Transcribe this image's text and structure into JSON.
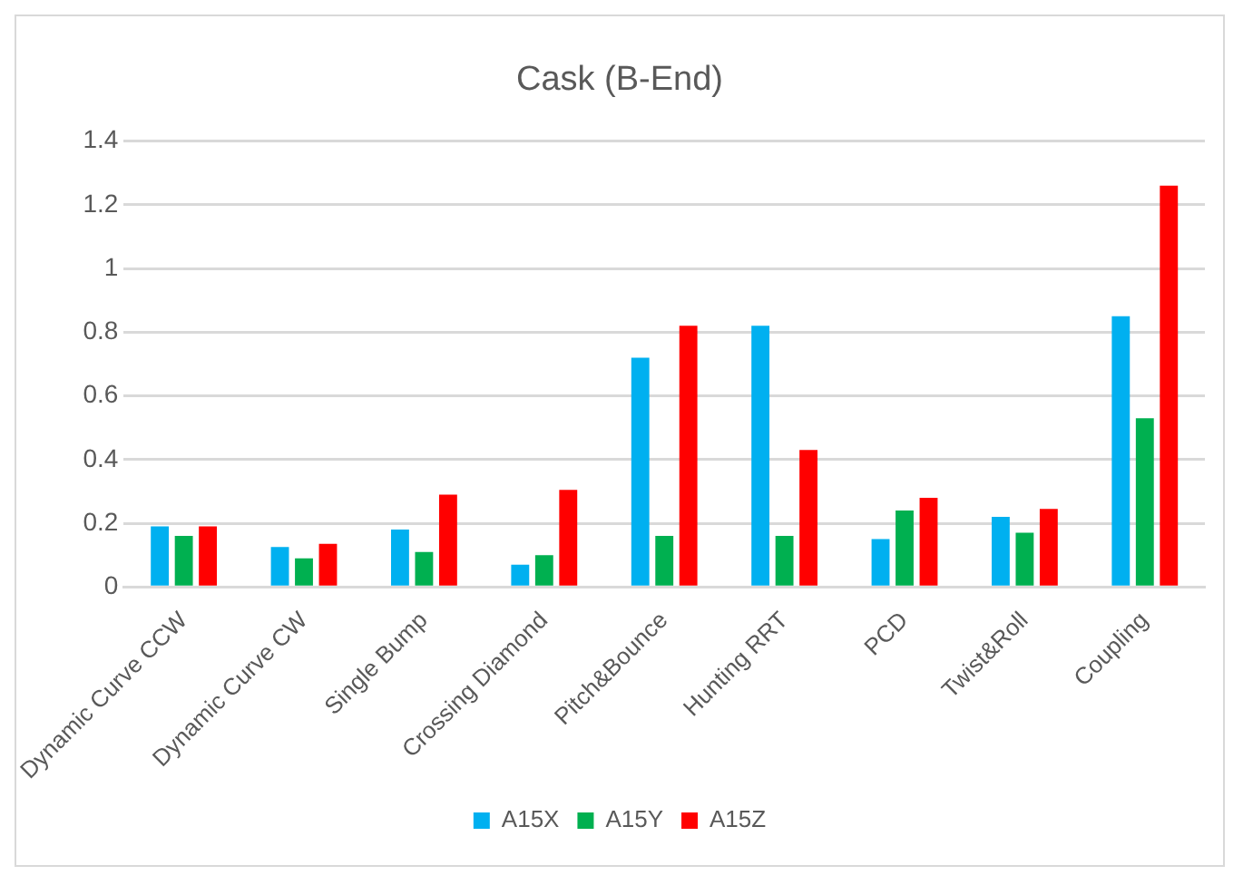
{
  "chart_data": {
    "type": "bar",
    "title": "Cask (B-End)",
    "categories": [
      "Dynamic Curve CCW",
      "Dynamic Curve CW",
      "Single Bump",
      "Crossing Diamond",
      "Pitch&Bounce",
      "Hunting RRT",
      "PCD",
      "Twist&Roll",
      "Coupling"
    ],
    "series": [
      {
        "name": "A15X",
        "color": "#00b0f0",
        "values": [
          0.19,
          0.125,
          0.18,
          0.07,
          0.72,
          0.82,
          0.15,
          0.22,
          0.85
        ]
      },
      {
        "name": "A15Y",
        "color": "#00b050",
        "values": [
          0.16,
          0.09,
          0.11,
          0.1,
          0.16,
          0.16,
          0.24,
          0.17,
          0.53
        ]
      },
      {
        "name": "A15Z",
        "color": "#ff0000",
        "values": [
          0.19,
          0.135,
          0.29,
          0.305,
          0.82,
          0.43,
          0.28,
          0.245,
          1.26
        ]
      }
    ],
    "ylim": [
      0,
      1.4
    ],
    "yticks": [
      0,
      0.2,
      0.4,
      0.6,
      0.8,
      1,
      1.2,
      1.4
    ],
    "grid": "y",
    "legend": "bottom"
  }
}
